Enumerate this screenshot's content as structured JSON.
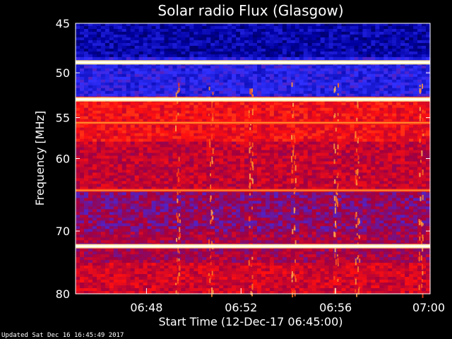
{
  "chart_data": {
    "type": "heatmap",
    "title": "Solar radio Flux (Glasgow)",
    "xlabel": "Start Time (12-Dec-17 06:45:00)",
    "ylabel": "Frequency [MHz]",
    "x_tick_labels": [
      "06:48",
      "06:52",
      "06:56",
      "07:00"
    ],
    "x_tick_minutes": [
      3,
      7,
      11,
      15
    ],
    "xlim_minutes": [
      0,
      15
    ],
    "y_tick_labels": [
      "45",
      "50",
      "55",
      "60",
      "70",
      "80"
    ],
    "y_tick_values": [
      45,
      50,
      55,
      60,
      70,
      80
    ],
    "ylim_mhz": [
      45,
      80
    ],
    "y_scale": "log",
    "bright_bands_mhz": [
      48.9,
      52.9,
      72.3
    ],
    "moderate_bands_mhz": [
      55.6,
      64.2
    ],
    "colormap": [
      "#000018",
      "#0000a0",
      "#3030ff",
      "#a00040",
      "#ff1010",
      "#ff8020",
      "#ffe080",
      "#ffffff"
    ]
  },
  "footer": {
    "updated": "Updated Sat Dec 16 16:45:49 2017"
  }
}
